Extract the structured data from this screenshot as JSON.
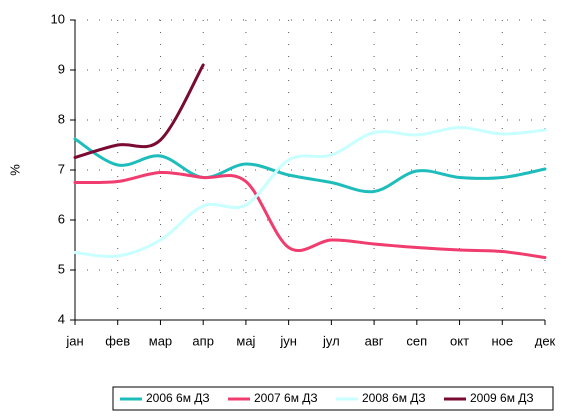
{
  "chart_data": {
    "type": "line",
    "y_label": "%",
    "categories": [
      "јан",
      "фев",
      "мар",
      "апр",
      "мај",
      "јун",
      "јул",
      "авг",
      "сеп",
      "окт",
      "ное",
      "дек"
    ],
    "series": [
      {
        "name": "2006 6м ДЗ",
        "color": "#1fbcbc",
        "values": [
          7.62,
          7.1,
          7.28,
          6.85,
          7.12,
          6.9,
          6.75,
          6.57,
          6.98,
          6.85,
          6.85,
          7.02
        ]
      },
      {
        "name": "2007 6м ДЗ",
        "color": "#f03c6e",
        "values": [
          6.75,
          6.77,
          6.95,
          6.85,
          6.77,
          5.45,
          5.6,
          5.52,
          5.45,
          5.4,
          5.37,
          5.25
        ]
      },
      {
        "name": "2008 6м ДЗ",
        "color": "#c8ffff",
        "values": [
          5.35,
          5.28,
          5.6,
          6.28,
          6.3,
          7.2,
          7.3,
          7.75,
          7.7,
          7.85,
          7.72,
          7.8
        ]
      },
      {
        "name": "2009 6м ДЗ",
        "color": "#7a0a32",
        "values": [
          7.25,
          7.5,
          7.6,
          9.1,
          null,
          null,
          null,
          null,
          null,
          null,
          null,
          null
        ]
      }
    ],
    "ylim": [
      4,
      10
    ],
    "yticks": [
      4,
      5,
      6,
      7,
      8,
      9,
      10
    ],
    "grid": true
  }
}
